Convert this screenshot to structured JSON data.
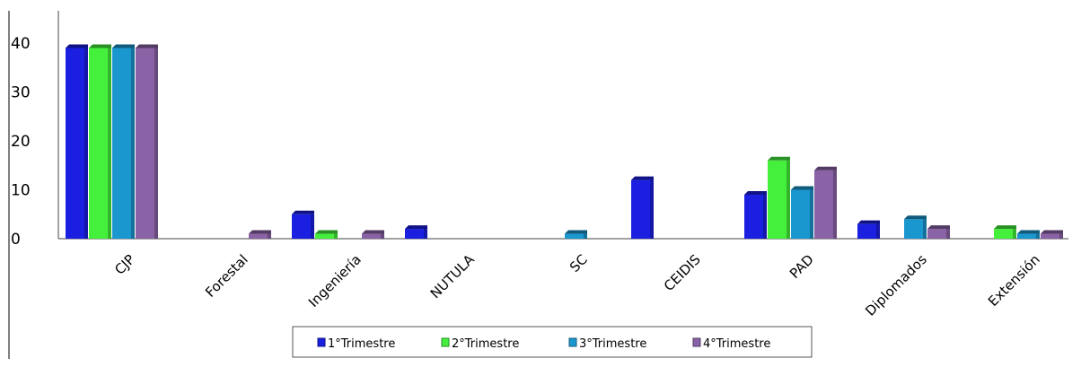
{
  "chart_data": {
    "type": "bar",
    "categories": [
      "CJP",
      "Forestal",
      "Ingeniería",
      "NUTULA",
      "SC",
      "CEIDIS",
      "PAD",
      "Diplomados",
      "Extensión"
    ],
    "series": [
      {
        "name": "1°Trimestre",
        "color": "#1a1fe0",
        "values": [
          39,
          0,
          5,
          2,
          0,
          12,
          9,
          3,
          0
        ]
      },
      {
        "name": "2°Trimestre",
        "color": "#45f03c",
        "values": [
          39,
          0,
          1,
          0,
          0,
          0,
          16,
          0,
          2
        ]
      },
      {
        "name": "3°Trimestre",
        "color": "#1b97cf",
        "values": [
          39,
          0,
          0,
          0,
          1,
          0,
          10,
          4,
          1
        ]
      },
      {
        "name": "4°Trimestre",
        "color": "#8a63a6",
        "values": [
          39,
          1,
          1,
          0,
          0,
          0,
          14,
          2,
          1
        ]
      }
    ],
    "yticks": [
      "0",
      "10",
      "20",
      "30",
      "40"
    ],
    "ylim": [
      0,
      40
    ],
    "legend_position": "bottom",
    "grid": false
  }
}
